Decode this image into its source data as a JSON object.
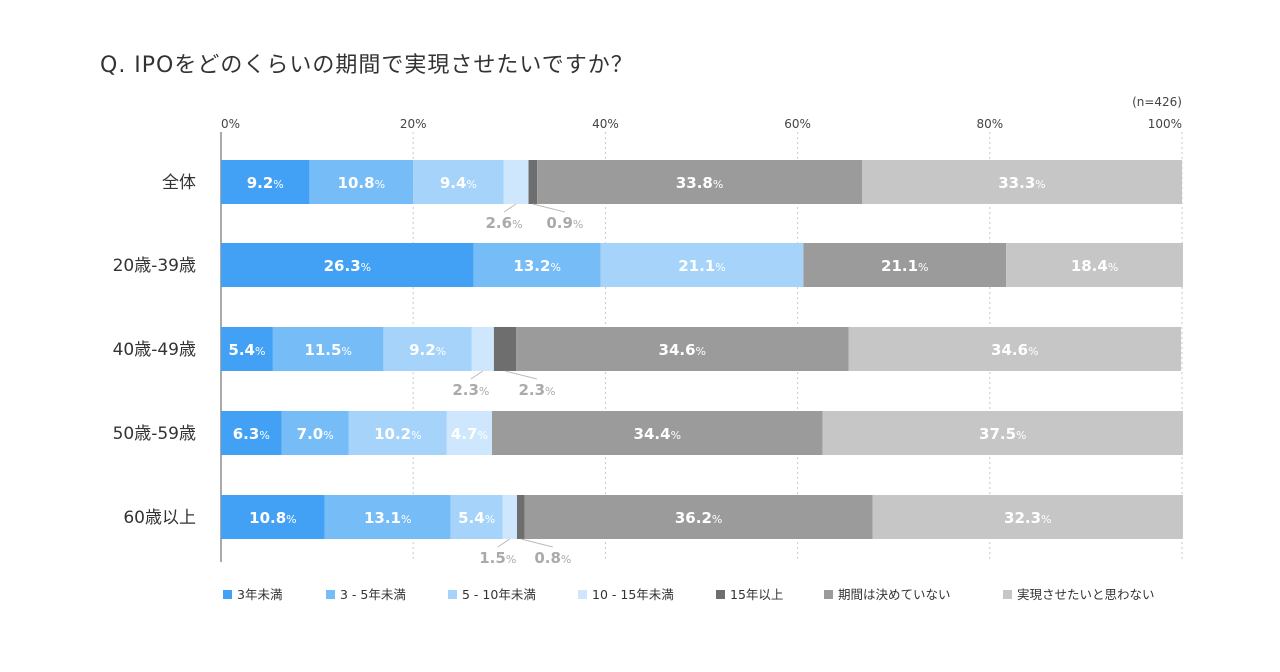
{
  "chart_data": {
    "type": "bar",
    "orientation": "horizontal-stacked-100",
    "title": "Q. IPOをどのくらいの期間で実現させたいですか？",
    "sample_note": "(n=426)",
    "x_ticks": [
      "0%",
      "20%",
      "40%",
      "60%",
      "80%",
      "100%"
    ],
    "xlim": [
      0,
      100
    ],
    "grid": "vertical-dotted",
    "legend_position": "bottom",
    "categories": [
      "全体",
      "20歳-39歳",
      "40歳-49歳",
      "50歳-59歳",
      "60歳以上"
    ],
    "series": [
      {
        "name": "3年未満",
        "color": "#42a1f5",
        "values": [
          9.2,
          26.3,
          5.4,
          6.3,
          10.8
        ]
      },
      {
        "name": "3 - 5年未満",
        "color": "#76bcf7",
        "values": [
          10.8,
          13.2,
          11.5,
          7.0,
          13.1
        ]
      },
      {
        "name": "5 - 10年未満",
        "color": "#a5d3fa",
        "values": [
          9.4,
          21.1,
          9.2,
          10.2,
          5.4
        ]
      },
      {
        "name": "10 - 15年未満",
        "color": "#cfe7fc",
        "values": [
          2.6,
          0,
          2.3,
          4.7,
          1.5
        ]
      },
      {
        "name": "15年以上",
        "color": "#6e6e6e",
        "values": [
          0.9,
          0,
          2.3,
          0,
          0.8
        ]
      },
      {
        "name": "期間は決めていない",
        "color": "#9b9b9b",
        "values": [
          33.8,
          21.1,
          34.6,
          34.4,
          36.2
        ]
      },
      {
        "name": "実現させたいと思わない",
        "color": "#c6c6c6",
        "values": [
          33.3,
          18.4,
          34.6,
          37.5,
          32.3
        ]
      }
    ],
    "labels": [
      [
        "9.2",
        "10.8",
        "9.4",
        "2.6",
        "0.9",
        "33.8",
        "33.3"
      ],
      [
        "26.3",
        "13.2",
        "21.1",
        "",
        "",
        "21.1",
        "18.4"
      ],
      [
        "5.4",
        "11.5",
        "9.2",
        "2.3",
        "2.3",
        "34.6",
        "34.6"
      ],
      [
        "6.3",
        "7.0",
        "10.2",
        "4.7",
        "",
        "34.4",
        "37.5"
      ],
      [
        "10.8",
        "13.1",
        "5.4",
        "1.5",
        "0.8",
        "36.2",
        "32.3"
      ]
    ],
    "outside_labels": [
      [
        false,
        false,
        false,
        true,
        true,
        false,
        false
      ],
      [
        false,
        false,
        false,
        false,
        false,
        false,
        false
      ],
      [
        false,
        false,
        false,
        true,
        true,
        false,
        false
      ],
      [
        false,
        false,
        false,
        false,
        false,
        false,
        false
      ],
      [
        false,
        false,
        false,
        true,
        true,
        false,
        false
      ]
    ],
    "percent_sign": "%"
  }
}
